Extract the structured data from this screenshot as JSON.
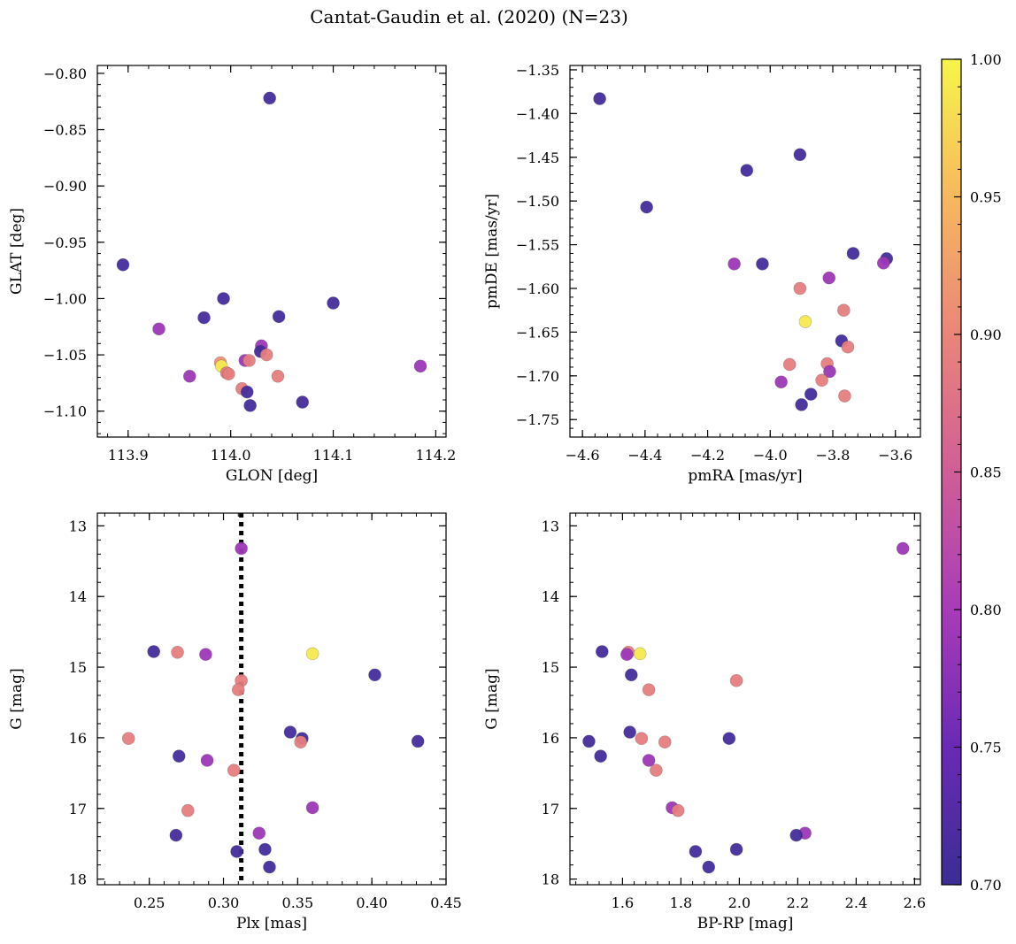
{
  "title": "Cantat-Gaudin et al. (2020) (N=23)",
  "colorbar": {
    "range": [
      0.7,
      1.0
    ],
    "ticks": [
      "0.70",
      "0.75",
      "0.80",
      "0.85",
      "0.90",
      "0.95",
      "1.00"
    ],
    "colormap": "plasma-like",
    "colors": [
      "#3b2d94",
      "#6a2ab5",
      "#a83bb8",
      "#d05e97",
      "#ea8579",
      "#f7b85e",
      "#f6f54a"
    ]
  },
  "chart_data": [
    {
      "id": "glon-glat",
      "type": "scatter",
      "xlabel": "GLON [deg]",
      "ylabel": "GLAT [deg]",
      "xlim": [
        113.87,
        114.21
      ],
      "ylim": [
        -1.123,
        -0.793
      ],
      "xticks": [
        "113.9",
        "114.0",
        "114.1",
        "114.2"
      ],
      "yticks": [
        "−0.80",
        "−0.85",
        "−0.90",
        "−0.95",
        "−1.00",
        "−1.05",
        "−1.10"
      ],
      "points": [
        {
          "x": 114.038,
          "y": -0.822,
          "c": 0.71
        },
        {
          "x": 113.895,
          "y": -0.97,
          "c": 0.71
        },
        {
          "x": 113.993,
          "y": -1.0,
          "c": 0.71
        },
        {
          "x": 114.1,
          "y": -1.004,
          "c": 0.71
        },
        {
          "x": 113.974,
          "y": -1.017,
          "c": 0.71
        },
        {
          "x": 114.047,
          "y": -1.016,
          "c": 0.71
        },
        {
          "x": 113.93,
          "y": -1.027,
          "c": 0.79
        },
        {
          "x": 114.03,
          "y": -1.042,
          "c": 0.79
        },
        {
          "x": 114.029,
          "y": -1.047,
          "c": 0.71
        },
        {
          "x": 114.035,
          "y": -1.05,
          "c": 0.89
        },
        {
          "x": 114.014,
          "y": -1.055,
          "c": 0.79
        },
        {
          "x": 114.018,
          "y": -1.055,
          "c": 0.89
        },
        {
          "x": 113.99,
          "y": -1.057,
          "c": 0.91
        },
        {
          "x": 113.991,
          "y": -1.06,
          "c": 0.99
        },
        {
          "x": 114.185,
          "y": -1.06,
          "c": 0.79
        },
        {
          "x": 113.996,
          "y": -1.066,
          "c": 0.89
        },
        {
          "x": 113.998,
          "y": -1.067,
          "c": 0.89
        },
        {
          "x": 113.96,
          "y": -1.069,
          "c": 0.79
        },
        {
          "x": 114.046,
          "y": -1.069,
          "c": 0.89
        },
        {
          "x": 114.011,
          "y": -1.08,
          "c": 0.89
        },
        {
          "x": 114.016,
          "y": -1.083,
          "c": 0.71
        },
        {
          "x": 114.07,
          "y": -1.092,
          "c": 0.71
        },
        {
          "x": 114.019,
          "y": -1.095,
          "c": 0.71
        }
      ]
    },
    {
      "id": "pmra-pmde",
      "type": "scatter",
      "xlabel": "pmRA [mas/yr]",
      "ylabel": "pmDE [mas/yr]",
      "xlim": [
        -4.64,
        -3.52
      ],
      "ylim": [
        -1.77,
        -1.345
      ],
      "xticks": [
        "−4.6",
        "−4.4",
        "−4.2",
        "−4.0",
        "−3.8",
        "−3.6"
      ],
      "yticks": [
        "−1.35",
        "−1.40",
        "−1.45",
        "−1.50",
        "−1.55",
        "−1.60",
        "−1.65",
        "−1.70",
        "−1.75"
      ],
      "points": [
        {
          "x": -4.545,
          "y": -1.383,
          "c": 0.71
        },
        {
          "x": -3.905,
          "y": -1.447,
          "c": 0.71
        },
        {
          "x": -4.075,
          "y": -1.465,
          "c": 0.71
        },
        {
          "x": -4.395,
          "y": -1.507,
          "c": 0.71
        },
        {
          "x": -3.735,
          "y": -1.56,
          "c": 0.71
        },
        {
          "x": -3.628,
          "y": -1.566,
          "c": 0.71
        },
        {
          "x": -3.638,
          "y": -1.571,
          "c": 0.79
        },
        {
          "x": -4.115,
          "y": -1.572,
          "c": 0.79
        },
        {
          "x": -4.025,
          "y": -1.572,
          "c": 0.71
        },
        {
          "x": -3.812,
          "y": -1.588,
          "c": 0.79
        },
        {
          "x": -3.905,
          "y": -1.6,
          "c": 0.89
        },
        {
          "x": -3.765,
          "y": -1.625,
          "c": 0.89
        },
        {
          "x": -3.888,
          "y": -1.638,
          "c": 0.99
        },
        {
          "x": -3.772,
          "y": -1.66,
          "c": 0.71
        },
        {
          "x": -3.752,
          "y": -1.667,
          "c": 0.89
        },
        {
          "x": -3.818,
          "y": -1.686,
          "c": 0.89
        },
        {
          "x": -3.938,
          "y": -1.687,
          "c": 0.89
        },
        {
          "x": -3.81,
          "y": -1.695,
          "c": 0.79
        },
        {
          "x": -3.835,
          "y": -1.705,
          "c": 0.89
        },
        {
          "x": -3.965,
          "y": -1.707,
          "c": 0.79
        },
        {
          "x": -3.87,
          "y": -1.721,
          "c": 0.71
        },
        {
          "x": -3.762,
          "y": -1.723,
          "c": 0.89
        },
        {
          "x": -3.9,
          "y": -1.733,
          "c": 0.71
        }
      ]
    },
    {
      "id": "plx-g",
      "type": "scatter",
      "xlabel": "Plx [mas]",
      "ylabel": "G [mag]",
      "xlim": [
        0.215,
        0.45
      ],
      "ylim": [
        18.08,
        12.82
      ],
      "xticks": [
        "0.25",
        "0.30",
        "0.35",
        "0.40",
        "0.45"
      ],
      "yticks": [
        "13",
        "14",
        "15",
        "16",
        "17",
        "18"
      ],
      "vline": {
        "x": 0.312,
        "style": "dotted"
      },
      "points": [
        {
          "x": 0.312,
          "y": 13.32,
          "c": 0.79
        },
        {
          "x": 0.253,
          "y": 14.78,
          "c": 0.71
        },
        {
          "x": 0.269,
          "y": 14.79,
          "c": 0.89
        },
        {
          "x": 0.288,
          "y": 14.82,
          "c": 0.79
        },
        {
          "x": 0.36,
          "y": 14.81,
          "c": 0.99
        },
        {
          "x": 0.402,
          "y": 15.11,
          "c": 0.71
        },
        {
          "x": 0.312,
          "y": 15.19,
          "c": 0.89
        },
        {
          "x": 0.31,
          "y": 15.32,
          "c": 0.89
        },
        {
          "x": 0.345,
          "y": 15.92,
          "c": 0.71
        },
        {
          "x": 0.353,
          "y": 16.01,
          "c": 0.71
        },
        {
          "x": 0.236,
          "y": 16.01,
          "c": 0.89
        },
        {
          "x": 0.352,
          "y": 16.06,
          "c": 0.89
        },
        {
          "x": 0.431,
          "y": 16.05,
          "c": 0.71
        },
        {
          "x": 0.27,
          "y": 16.26,
          "c": 0.71
        },
        {
          "x": 0.289,
          "y": 16.32,
          "c": 0.79
        },
        {
          "x": 0.307,
          "y": 16.46,
          "c": 0.89
        },
        {
          "x": 0.36,
          "y": 16.99,
          "c": 0.79
        },
        {
          "x": 0.276,
          "y": 17.03,
          "c": 0.89
        },
        {
          "x": 0.324,
          "y": 17.35,
          "c": 0.79
        },
        {
          "x": 0.268,
          "y": 17.38,
          "c": 0.71
        },
        {
          "x": 0.328,
          "y": 17.58,
          "c": 0.71
        },
        {
          "x": 0.309,
          "y": 17.61,
          "c": 0.71
        },
        {
          "x": 0.331,
          "y": 17.83,
          "c": 0.71
        }
      ]
    },
    {
      "id": "bprp-g",
      "type": "scatter",
      "xlabel": "BP-RP [mag]",
      "ylabel": "G [mag]",
      "xlim": [
        1.42,
        2.62
      ],
      "ylim": [
        18.08,
        12.82
      ],
      "xticks": [
        "1.6",
        "1.8",
        "2.0",
        "2.2",
        "2.4",
        "2.6"
      ],
      "yticks": [
        "13",
        "14",
        "15",
        "16",
        "17",
        "18"
      ],
      "points": [
        {
          "x": 2.56,
          "y": 13.32,
          "c": 0.79
        },
        {
          "x": 1.53,
          "y": 14.78,
          "c": 0.71
        },
        {
          "x": 1.62,
          "y": 14.79,
          "c": 0.89
        },
        {
          "x": 1.615,
          "y": 14.82,
          "c": 0.79
        },
        {
          "x": 1.66,
          "y": 14.81,
          "c": 0.99
        },
        {
          "x": 1.63,
          "y": 15.11,
          "c": 0.71
        },
        {
          "x": 1.99,
          "y": 15.19,
          "c": 0.89
        },
        {
          "x": 1.69,
          "y": 15.32,
          "c": 0.89
        },
        {
          "x": 1.625,
          "y": 15.92,
          "c": 0.71
        },
        {
          "x": 1.665,
          "y": 16.01,
          "c": 0.89
        },
        {
          "x": 1.965,
          "y": 16.01,
          "c": 0.71
        },
        {
          "x": 1.485,
          "y": 16.05,
          "c": 0.71
        },
        {
          "x": 1.745,
          "y": 16.06,
          "c": 0.89
        },
        {
          "x": 1.525,
          "y": 16.26,
          "c": 0.71
        },
        {
          "x": 1.69,
          "y": 16.32,
          "c": 0.79
        },
        {
          "x": 1.715,
          "y": 16.46,
          "c": 0.89
        },
        {
          "x": 1.77,
          "y": 16.99,
          "c": 0.79
        },
        {
          "x": 1.79,
          "y": 17.03,
          "c": 0.89
        },
        {
          "x": 2.225,
          "y": 17.35,
          "c": 0.79
        },
        {
          "x": 2.195,
          "y": 17.38,
          "c": 0.71
        },
        {
          "x": 1.99,
          "y": 17.58,
          "c": 0.71
        },
        {
          "x": 1.85,
          "y": 17.61,
          "c": 0.71
        },
        {
          "x": 1.895,
          "y": 17.83,
          "c": 0.71
        }
      ]
    }
  ]
}
